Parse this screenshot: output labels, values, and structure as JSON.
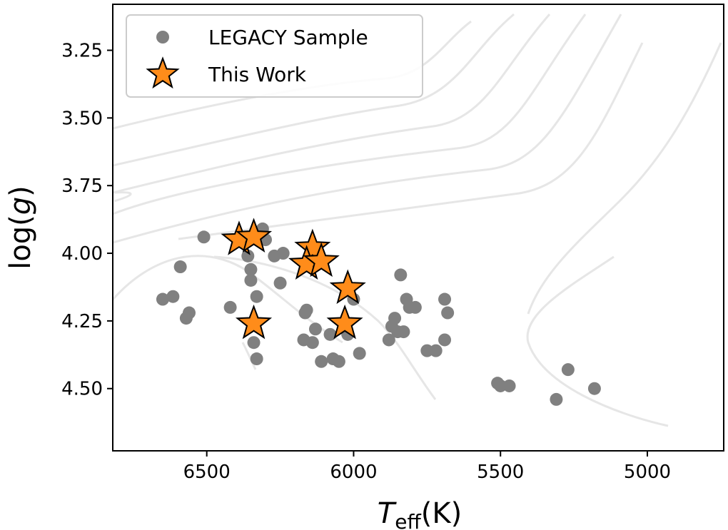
{
  "chart_data": {
    "type": "scatter",
    "title": "",
    "xlabel": {
      "symbol": "T",
      "subscript": "eff",
      "unit": "(K)"
    },
    "ylabel": {
      "prefix": "log(",
      "symbol": "g",
      "suffix": ")"
    },
    "xlim": [
      6820,
      4740
    ],
    "ylim": [
      3.08,
      4.73
    ],
    "x_inverted": true,
    "y_inverted": true,
    "xticks": [
      6500,
      6000,
      5500,
      5000
    ],
    "yticks": [
      3.25,
      3.5,
      3.75,
      4.0,
      4.25,
      4.5
    ],
    "ytick_labels": [
      "3.25",
      "3.50",
      "3.75",
      "4.00",
      "4.25",
      "4.50"
    ],
    "grid": false,
    "legend": {
      "placement": "top-left"
    },
    "series": [
      {
        "name": "LEGACY Sample",
        "marker": "circle",
        "color": "#808080",
        "points": [
          [
            6650,
            4.17
          ],
          [
            6615,
            4.16
          ],
          [
            6560,
            4.22
          ],
          [
            6570,
            4.24
          ],
          [
            6590,
            4.05
          ],
          [
            6510,
            3.94
          ],
          [
            6420,
            4.2
          ],
          [
            6360,
            4.01
          ],
          [
            6350,
            4.06
          ],
          [
            6350,
            4.1
          ],
          [
            6330,
            4.16
          ],
          [
            6310,
            3.91
          ],
          [
            6300,
            3.95
          ],
          [
            6340,
            4.33
          ],
          [
            6330,
            4.39
          ],
          [
            6270,
            4.01
          ],
          [
            6240,
            4.0
          ],
          [
            6250,
            4.11
          ],
          [
            6160,
            4.21
          ],
          [
            6165,
            4.22
          ],
          [
            6170,
            4.32
          ],
          [
            6140,
            4.33
          ],
          [
            6130,
            4.28
          ],
          [
            6110,
            4.4
          ],
          [
            6080,
            4.3
          ],
          [
            6070,
            4.39
          ],
          [
            6050,
            4.4
          ],
          [
            6020,
            4.3
          ],
          [
            6000,
            4.17
          ],
          [
            5980,
            4.37
          ],
          [
            5880,
            4.32
          ],
          [
            5860,
            4.24
          ],
          [
            5870,
            4.27
          ],
          [
            5850,
            4.29
          ],
          [
            5830,
            4.29
          ],
          [
            5840,
            4.08
          ],
          [
            5820,
            4.17
          ],
          [
            5810,
            4.2
          ],
          [
            5790,
            4.2
          ],
          [
            5750,
            4.36
          ],
          [
            5720,
            4.36
          ],
          [
            5690,
            4.17
          ],
          [
            5680,
            4.22
          ],
          [
            5690,
            4.32
          ],
          [
            5510,
            4.48
          ],
          [
            5500,
            4.49
          ],
          [
            5470,
            4.49
          ],
          [
            5310,
            4.54
          ],
          [
            5270,
            4.43
          ],
          [
            5180,
            4.5
          ]
        ]
      },
      {
        "name": "This Work",
        "marker": "star",
        "color": "#ff8c1a",
        "points": [
          [
            6390,
            3.95
          ],
          [
            6340,
            3.94
          ],
          [
            6140,
            3.98
          ],
          [
            6160,
            4.04
          ],
          [
            6110,
            4.03
          ],
          [
            6020,
            4.13
          ],
          [
            6340,
            4.26
          ],
          [
            6030,
            4.26
          ]
        ]
      }
    ]
  }
}
